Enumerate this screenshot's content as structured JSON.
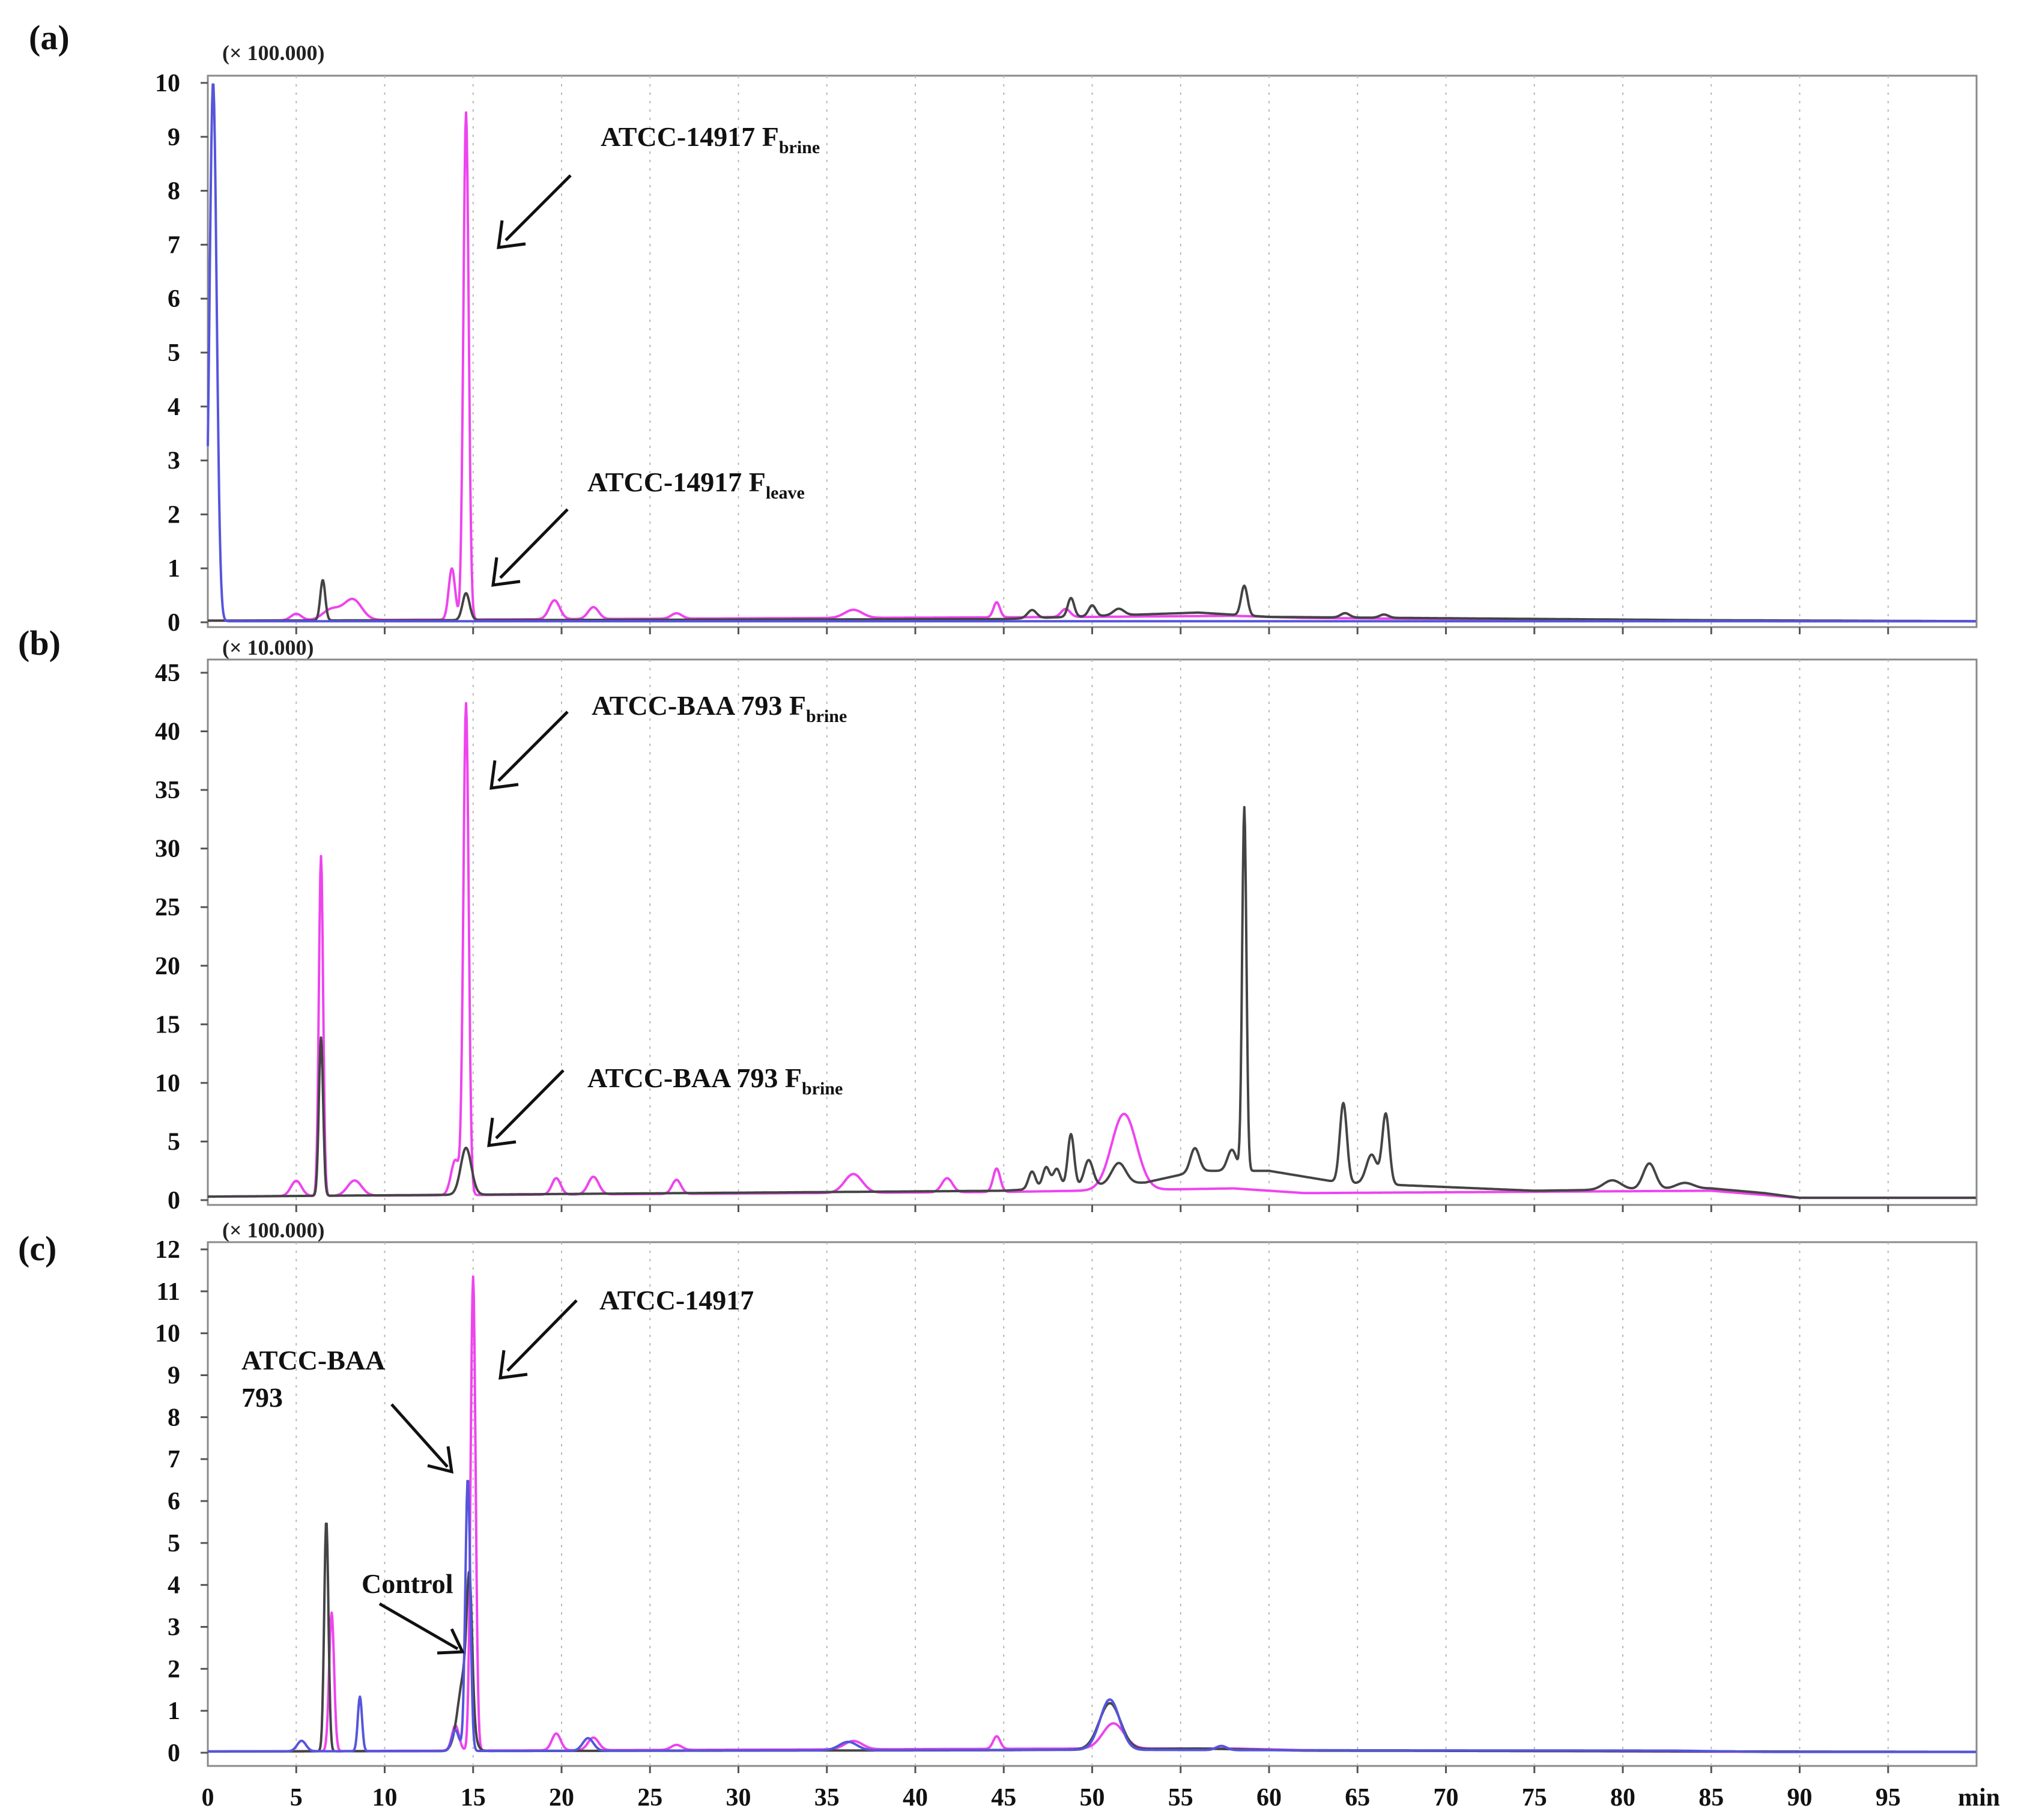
{
  "chart_data": [
    {
      "type": "line",
      "panel_label": "(a)",
      "y_scale_label": "(× 100.000)",
      "ylim": [
        0,
        10
      ],
      "y_ticks": [
        "0",
        "1",
        "2",
        "3",
        "4",
        "5",
        "6",
        "7",
        "8",
        "9",
        "10"
      ],
      "xlim": [
        0,
        100
      ],
      "annotations": [
        {
          "text": "ATCC-14917 F",
          "sub": "brine",
          "points_to": [
            14.8,
            7.0
          ]
        },
        {
          "text": "ATCC-14917 F",
          "sub": "leave",
          "points_to": [
            14.8,
            0.7
          ]
        }
      ],
      "series": [
        {
          "color": "#ee44ee",
          "peaks": [
            [
              5.0,
              0.12,
              0.3
            ],
            [
              7.0,
              0.2,
              0.5
            ],
            [
              8.2,
              0.38,
              0.5
            ],
            [
              13.8,
              0.95,
              0.18
            ],
            [
              14.6,
              9.4,
              0.15
            ],
            [
              19.6,
              0.35,
              0.3
            ],
            [
              21.8,
              0.22,
              0.3
            ],
            [
              26.5,
              0.1,
              0.3
            ],
            [
              36.5,
              0.15,
              0.5
            ],
            [
              44.6,
              0.28,
              0.18
            ],
            [
              48.5,
              0.15,
              0.25
            ]
          ],
          "drift": [
            [
              0,
              0.03
            ],
            [
              50,
              0.1
            ],
            [
              58,
              0.12
            ],
            [
              62,
              0.08
            ],
            [
              89,
              0.02
            ],
            [
              100,
              0.02
            ]
          ]
        },
        {
          "color": "#444444",
          "peaks": [
            [
              6.5,
              0.75,
              0.14
            ],
            [
              14.6,
              0.5,
              0.2
            ],
            [
              46.6,
              0.15,
              0.25
            ],
            [
              48.8,
              0.35,
              0.18
            ],
            [
              50.0,
              0.2,
              0.2
            ],
            [
              51.5,
              0.12,
              0.3
            ],
            [
              58.6,
              0.55,
              0.18
            ],
            [
              64.3,
              0.08,
              0.25
            ],
            [
              66.5,
              0.06,
              0.25
            ]
          ],
          "drift": [
            [
              0,
              0.03
            ],
            [
              45,
              0.06
            ],
            [
              56,
              0.18
            ],
            [
              60,
              0.1
            ],
            [
              84,
              0.04
            ],
            [
              100,
              0.02
            ]
          ]
        },
        {
          "color": "#5555dd",
          "peaks": [
            [
              0.3,
              10.0,
              0.2
            ]
          ],
          "drift": [
            [
              0,
              0.02
            ],
            [
              100,
              0.02
            ]
          ]
        }
      ]
    },
    {
      "type": "line",
      "panel_label": "(b)",
      "y_scale_label": "(× 10.000)",
      "ylim": [
        0,
        45
      ],
      "y_ticks": [
        "0",
        "5",
        "10",
        "15",
        "20",
        "25",
        "30",
        "35",
        "40",
        "45"
      ],
      "xlim": [
        0,
        100
      ],
      "annotations": [
        {
          "text": "ATCC-BAA 793 F",
          "sub": "brine",
          "points_to": [
            14.8,
            35.0
          ]
        },
        {
          "text": "ATCC-BAA 793 F",
          "sub": "brine",
          "points_to": [
            15.0,
            5.0
          ]
        }
      ],
      "series": [
        {
          "color": "#ee44ee",
          "peaks": [
            [
              5.0,
              1.3,
              0.3
            ],
            [
              6.4,
              29.0,
              0.12
            ],
            [
              8.3,
              1.3,
              0.4
            ],
            [
              14.0,
              3.0,
              0.25
            ],
            [
              14.6,
              41.8,
              0.15
            ],
            [
              19.7,
              1.4,
              0.25
            ],
            [
              21.8,
              1.5,
              0.3
            ],
            [
              26.5,
              1.2,
              0.25
            ],
            [
              36.5,
              1.6,
              0.5
            ],
            [
              41.8,
              1.2,
              0.3
            ],
            [
              44.6,
              2.0,
              0.2
            ],
            [
              51.8,
              6.5,
              0.7
            ]
          ],
          "drift": [
            [
              0,
              0.3
            ],
            [
              45,
              0.7
            ],
            [
              58,
              1.0
            ],
            [
              62,
              0.6
            ],
            [
              85,
              0.8
            ],
            [
              90,
              0.2
            ],
            [
              100,
              0.2
            ]
          ]
        },
        {
          "color": "#444444",
          "peaks": [
            [
              6.4,
              13.5,
              0.12
            ],
            [
              14.6,
              4.0,
              0.3
            ],
            [
              46.6,
              1.5,
              0.2
            ],
            [
              47.4,
              1.8,
              0.2
            ],
            [
              48.0,
              1.6,
              0.2
            ],
            [
              48.8,
              4.5,
              0.18
            ],
            [
              49.8,
              2.2,
              0.25
            ],
            [
              51.5,
              1.8,
              0.4
            ],
            [
              55.8,
              2.0,
              0.25
            ],
            [
              57.9,
              1.8,
              0.25
            ],
            [
              58.6,
              31.0,
              0.12
            ],
            [
              64.2,
              6.8,
              0.2
            ],
            [
              65.8,
              2.5,
              0.3
            ],
            [
              66.6,
              6.0,
              0.2
            ],
            [
              79.4,
              0.8,
              0.5
            ],
            [
              81.5,
              2.2,
              0.35
            ],
            [
              83.5,
              0.5,
              0.5
            ]
          ],
          "drift": [
            [
              0,
              0.3
            ],
            [
              45,
              0.8
            ],
            [
              53,
              1.5
            ],
            [
              56,
              2.5
            ],
            [
              60,
              2.5
            ],
            [
              64,
              1.5
            ],
            [
              75,
              0.8
            ],
            [
              85,
              1.0
            ],
            [
              88,
              0.6
            ],
            [
              90,
              0.2
            ],
            [
              100,
              0.2
            ]
          ]
        }
      ]
    },
    {
      "type": "line",
      "panel_label": "(c)",
      "y_scale_label": "(× 100.000)",
      "ylim": [
        0,
        12
      ],
      "y_ticks": [
        "0",
        "1",
        "2",
        "3",
        "4",
        "5",
        "6",
        "7",
        "8",
        "9",
        "10",
        "11",
        "12"
      ],
      "xlim": [
        0,
        100
      ],
      "xlabel": "min",
      "x_ticks": [
        "0",
        "5",
        "10",
        "15",
        "20",
        "25",
        "30",
        "35",
        "40",
        "45",
        "50",
        "55",
        "60",
        "65",
        "70",
        "75",
        "80",
        "85",
        "90",
        "95"
      ],
      "annotations": [
        {
          "text": "ATCC-14917",
          "points_to": [
            15.2,
            9.0
          ]
        },
        {
          "text": "ATCC-BAA",
          "text2": "793",
          "points_to": [
            14.2,
            6.7
          ]
        },
        {
          "text": "Control",
          "points_to": [
            14.0,
            2.3
          ]
        }
      ],
      "series": [
        {
          "color": "#ee44ee",
          "peaks": [
            [
              7.0,
              3.3,
              0.14
            ],
            [
              14.0,
              0.6,
              0.2
            ],
            [
              15.0,
              11.3,
              0.14
            ],
            [
              19.7,
              0.4,
              0.25
            ],
            [
              21.8,
              0.3,
              0.3
            ],
            [
              26.5,
              0.12,
              0.3
            ],
            [
              36.5,
              0.2,
              0.5
            ],
            [
              44.6,
              0.3,
              0.2
            ],
            [
              51.2,
              0.6,
              0.6
            ]
          ],
          "drift": [
            [
              0,
              0.03
            ],
            [
              50,
              0.1
            ],
            [
              58,
              0.1
            ],
            [
              62,
              0.06
            ],
            [
              89,
              0.02
            ],
            [
              100,
              0.02
            ]
          ]
        },
        {
          "color": "#444444",
          "peaks": [
            [
              6.7,
              5.5,
              0.12
            ],
            [
              14.5,
              1.8,
              0.35
            ],
            [
              14.8,
              3.0,
              0.15
            ],
            [
              51.0,
              1.1,
              0.6
            ]
          ],
          "drift": [
            [
              0,
              0.03
            ],
            [
              45,
              0.06
            ],
            [
              56,
              0.1
            ],
            [
              62,
              0.05
            ],
            [
              100,
              0.02
            ]
          ]
        },
        {
          "color": "#5555dd",
          "peaks": [
            [
              5.3,
              0.25,
              0.25
            ],
            [
              8.6,
              1.3,
              0.12
            ],
            [
              14.0,
              0.5,
              0.2
            ],
            [
              14.7,
              6.5,
              0.14
            ],
            [
              21.5,
              0.3,
              0.3
            ],
            [
              36.2,
              0.2,
              0.5
            ],
            [
              51.0,
              1.2,
              0.55
            ],
            [
              57.3,
              0.1,
              0.3
            ]
          ],
          "drift": [
            [
              0,
              0.03
            ],
            [
              50,
              0.07
            ],
            [
              60,
              0.06
            ],
            [
              83,
              0.05
            ],
            [
              88,
              0.02
            ],
            [
              100,
              0.02
            ]
          ]
        }
      ]
    }
  ]
}
